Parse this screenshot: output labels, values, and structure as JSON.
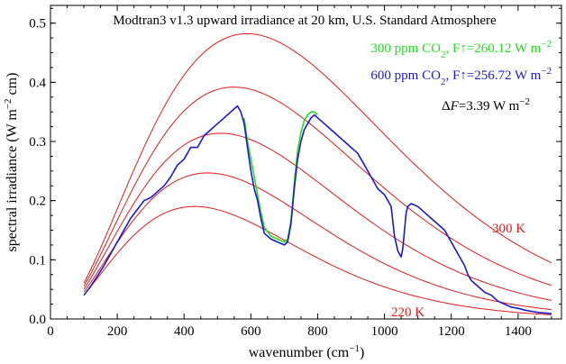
{
  "chart_data": {
    "type": "line",
    "title": "Modtran3 v1.3 upward irradiance at 20 km, U.S. Standard Atmosphere",
    "xlabel": "wavenumber (cm⁻¹)",
    "xlabel_main": "wavenumber (cm",
    "xlabel_sup": "−1",
    "xlabel_end": ")",
    "ylabel_main": "spectral irradiance (W  m",
    "ylabel_sup": "−2",
    "ylabel_end": " cm)",
    "xlim": [
      0,
      1530
    ],
    "ylim": [
      0,
      0.53
    ],
    "x_ticks": [
      0,
      200,
      400,
      600,
      800,
      1000,
      1200,
      1400
    ],
    "y_ticks": [
      0.0,
      0.1,
      0.2,
      0.3,
      0.4,
      0.5
    ],
    "y_tick_labels": [
      "0.0",
      "0.1",
      "0.2",
      "0.3",
      "0.4",
      "0.5"
    ],
    "grid": false,
    "legend": [
      {
        "label_main": "300 ppm CO",
        "label_sub": "2",
        "label_rest": ", F↑=260.12 W m",
        "label_sup": "−2",
        "color": "#22dd22"
      },
      {
        "label_main": "600 ppm CO",
        "label_sub": "2",
        "label_rest": ", F↑=256.72 W m",
        "label_sup": "−2",
        "color": "#1a1acc"
      }
    ],
    "delta_label": {
      "delta": "Δ",
      "var": "F",
      "rest": "=3.39 W m",
      "sup": "−2"
    },
    "temperature_labels": {
      "top": "300 K",
      "bottom": "220 K"
    },
    "colors": {
      "planck": "#e21a1a",
      "co2_300": "#22dd22",
      "co2_600": "#1a1acc"
    },
    "planck_temperatures_K": [
      300,
      280,
      260,
      240,
      220
    ],
    "spectrum_600ppm": {
      "x": [
        100,
        120,
        140,
        160,
        180,
        200,
        220,
        240,
        260,
        280,
        300,
        320,
        340,
        360,
        380,
        400,
        420,
        440,
        460,
        480,
        500,
        520,
        540,
        550,
        560,
        570,
        580,
        590,
        600,
        610,
        620,
        630,
        640,
        660,
        680,
        700,
        710,
        720,
        730,
        740,
        750,
        760,
        770,
        780,
        790,
        800,
        820,
        840,
        860,
        880,
        900,
        920,
        940,
        960,
        980,
        1000,
        1020,
        1030,
        1040,
        1050,
        1055,
        1060,
        1065,
        1070,
        1080,
        1100,
        1120,
        1140,
        1160,
        1180,
        1200,
        1220,
        1240,
        1250,
        1260,
        1280,
        1300,
        1320,
        1340,
        1360,
        1380,
        1400,
        1420,
        1440,
        1460,
        1480,
        1500
      ],
      "y": [
        0.04,
        0.055,
        0.072,
        0.09,
        0.11,
        0.13,
        0.15,
        0.17,
        0.185,
        0.2,
        0.205,
        0.215,
        0.225,
        0.24,
        0.26,
        0.27,
        0.29,
        0.29,
        0.31,
        0.32,
        0.33,
        0.34,
        0.35,
        0.355,
        0.36,
        0.35,
        0.33,
        0.29,
        0.25,
        0.22,
        0.2,
        0.17,
        0.145,
        0.135,
        0.13,
        0.125,
        0.13,
        0.16,
        0.22,
        0.27,
        0.3,
        0.32,
        0.33,
        0.34,
        0.345,
        0.34,
        0.33,
        0.32,
        0.31,
        0.3,
        0.29,
        0.28,
        0.26,
        0.24,
        0.22,
        0.21,
        0.19,
        0.14,
        0.115,
        0.105,
        0.12,
        0.15,
        0.18,
        0.19,
        0.195,
        0.19,
        0.18,
        0.17,
        0.16,
        0.15,
        0.13,
        0.11,
        0.09,
        0.075,
        0.065,
        0.055,
        0.045,
        0.04,
        0.03,
        0.025,
        0.02,
        0.018,
        0.015,
        0.013,
        0.011,
        0.01,
        0.009
      ]
    },
    "spectrum_300ppm": {
      "x": [
        580,
        590,
        600,
        610,
        620,
        630,
        640,
        660,
        680,
        700,
        710,
        720,
        730,
        740,
        750,
        760,
        770,
        780,
        790,
        800
      ],
      "y": [
        0.34,
        0.3,
        0.27,
        0.24,
        0.21,
        0.18,
        0.155,
        0.14,
        0.135,
        0.13,
        0.135,
        0.165,
        0.23,
        0.285,
        0.315,
        0.335,
        0.345,
        0.35,
        0.35,
        0.345
      ]
    }
  }
}
